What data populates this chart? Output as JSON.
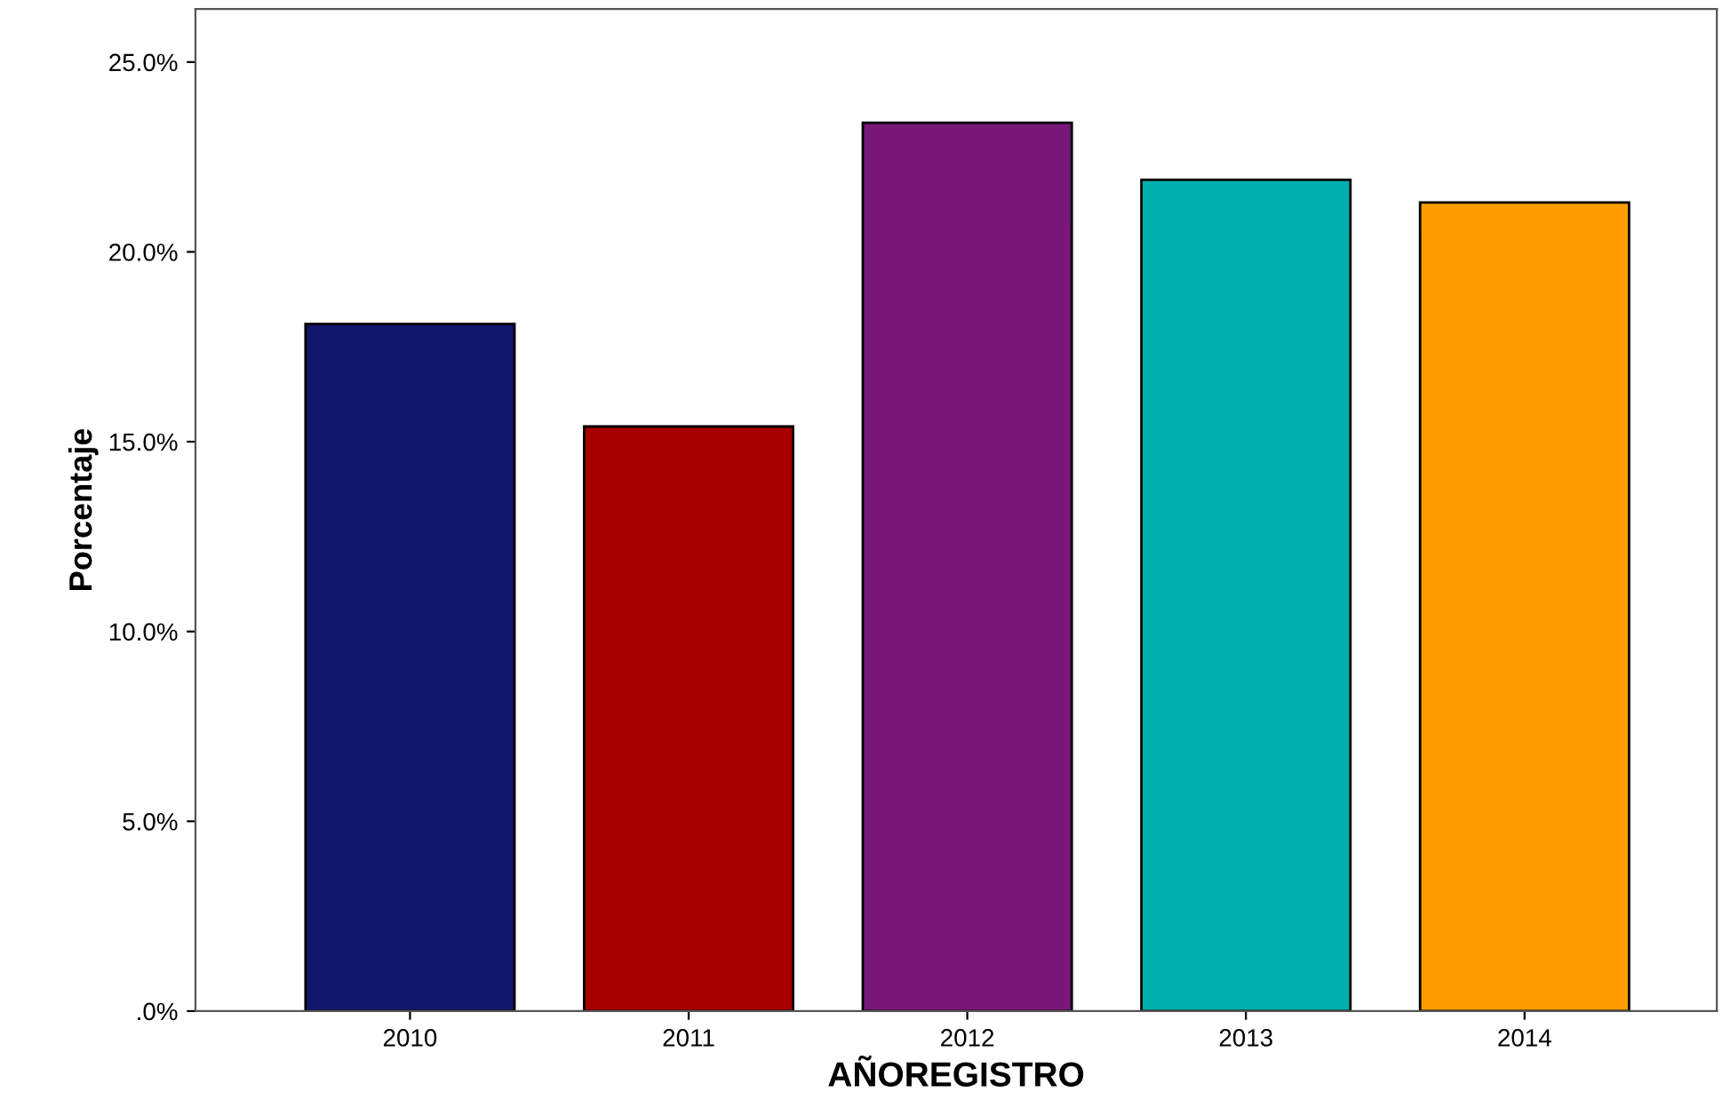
{
  "chart_data": {
    "type": "bar",
    "xlabel": "AÑOREGISTRO",
    "ylabel": "Porcentaje",
    "categories": [
      "2010",
      "2011",
      "2012",
      "2013",
      "2014"
    ],
    "values": [
      18.1,
      15.4,
      23.4,
      21.9,
      21.3
    ],
    "colors": [
      "#12166b",
      "#a80000",
      "#781878",
      "#00b0ae",
      "#ff9d00"
    ],
    "ylim": [
      0,
      26.4
    ],
    "yticks": [
      {
        "value": 0,
        "label": ".0%"
      },
      {
        "value": 5,
        "label": "5.0%"
      },
      {
        "value": 10,
        "label": "10.0%"
      },
      {
        "value": 15,
        "label": "15.0%"
      },
      {
        "value": 20,
        "label": "20.0%"
      },
      {
        "value": 25,
        "label": "25.0%"
      }
    ],
    "grid": false,
    "legend": false
  }
}
